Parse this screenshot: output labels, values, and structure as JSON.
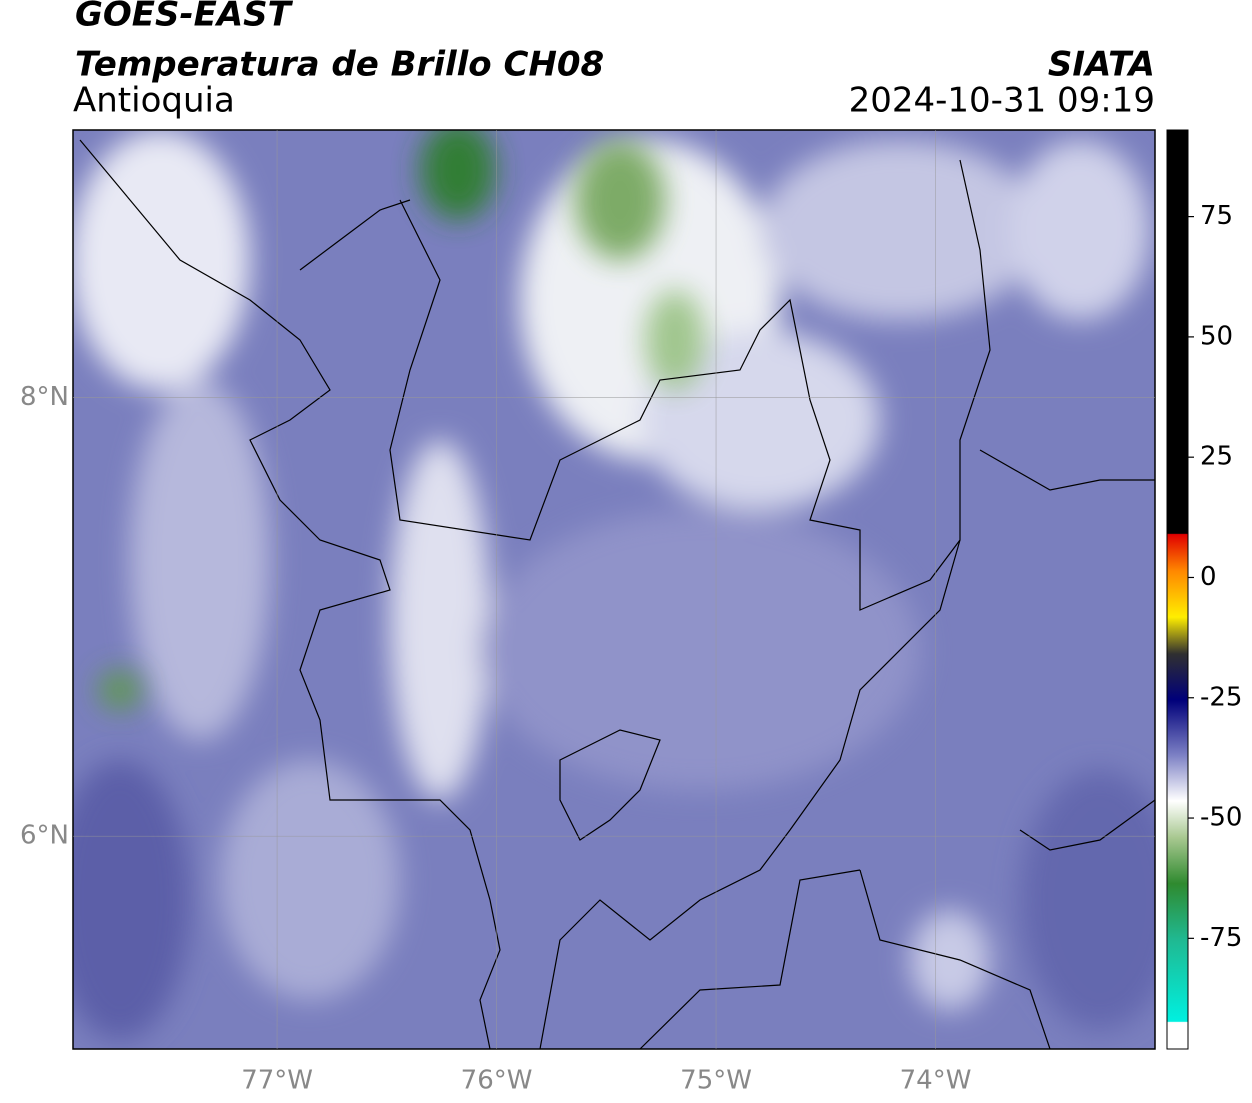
{
  "chart_data": {
    "type": "map",
    "title": "GOES-EAST",
    "subtitle": "Temperatura de Brillo CH08",
    "region": "Antioquia",
    "source": "SIATA",
    "timestamp": "2024-10-31 09:19",
    "xlim": [
      -77.93,
      -73.0
    ],
    "ylim": [
      5.03,
      9.22
    ],
    "xticks": [
      {
        "value": -77,
        "label": "77°W"
      },
      {
        "value": -76,
        "label": "76°W"
      },
      {
        "value": -75,
        "label": "75°W"
      },
      {
        "value": -74,
        "label": "74°W"
      }
    ],
    "yticks": [
      {
        "value": 6,
        "label": "6°N"
      },
      {
        "value": 8,
        "label": "8°N"
      }
    ],
    "grid": true,
    "colorbar": {
      "lim": [
        -98,
        93
      ],
      "ticks": [
        75,
        50,
        25,
        0,
        -25,
        -50,
        -75
      ]
    }
  }
}
